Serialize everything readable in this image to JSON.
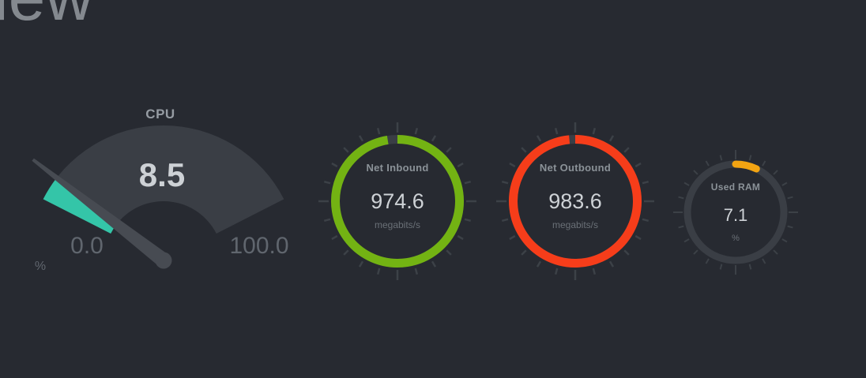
{
  "page": {
    "heading_clipped": "iew"
  },
  "colors": {
    "background": "#272a31",
    "gauge_track": "#3a3e45",
    "needle": "#474b52",
    "tick": "#3c4147",
    "cpu_fill": "#34c5a8",
    "net_inbound_ring": "#73b313",
    "net_outbound_ring": "#f63d1a",
    "used_ram_ring": "#f2a412",
    "value_text": "#cdd1d5",
    "label_text": "#8b9298",
    "dim_text": "#60666e"
  },
  "chart_data": [
    {
      "id": "cpu",
      "type": "meter-gauge",
      "title": "CPU",
      "value": 8.5,
      "value_display": "8.5",
      "min": 0,
      "max": 100,
      "min_label": "0.0",
      "max_label": "100.0",
      "unit": "%",
      "fill_color": "#34c5a8"
    },
    {
      "id": "net-inbound",
      "type": "circle-gauge",
      "title": "Net Inbound",
      "value_display": "974.6",
      "unit": "megabits/s",
      "ring_color": "#73b313",
      "fill_fraction": 0.975
    },
    {
      "id": "net-outbound",
      "type": "circle-gauge",
      "title": "Net Outbound",
      "value_display": "983.6",
      "unit": "megabits/s",
      "ring_color": "#f63d1a",
      "fill_fraction": 0.985
    },
    {
      "id": "used-ram",
      "type": "circle-gauge",
      "title": "Used RAM",
      "value_display": "7.1",
      "unit": "%",
      "ring_color": "#f2a412",
      "fill_fraction": 0.071
    }
  ]
}
